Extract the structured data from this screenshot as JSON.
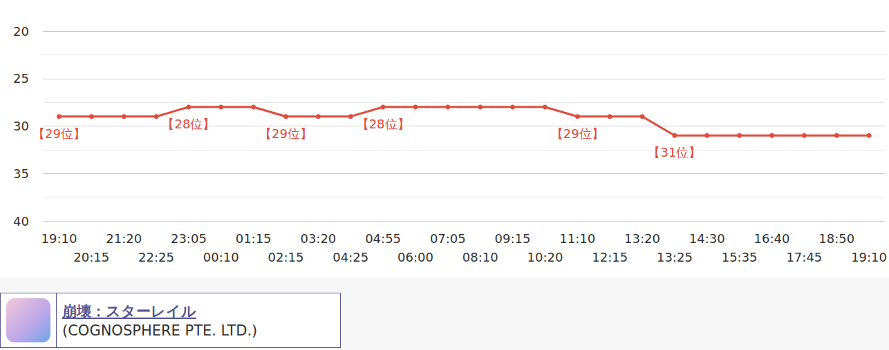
{
  "chart_data": {
    "type": "line",
    "subtitle": "(COGNOSPHERE PTE. LTD.)",
    "categories": [
      "19:10",
      "20:15",
      "21:20",
      "22:25",
      "23:05",
      "00:10",
      "01:15",
      "02:15",
      "03:20",
      "04:25",
      "04:55",
      "06:00",
      "07:05",
      "08:10",
      "09:15",
      "10:20",
      "11:10",
      "12:15",
      "13:20",
      "13:25",
      "14:30",
      "15:35",
      "16:40",
      "17:45",
      "18:50",
      "19:10"
    ],
    "series": [
      {
        "name": "崩壊：スターレイル",
        "color": "#e04b3b",
        "values": [
          29,
          29,
          29,
          29,
          28,
          28,
          28,
          29,
          29,
          29,
          28,
          28,
          28,
          28,
          28,
          28,
          29,
          29,
          29,
          31,
          31,
          31,
          31,
          31,
          31,
          31
        ],
        "value_labels": [
          "【29位】",
          null,
          null,
          null,
          "【28位】",
          null,
          null,
          "【29位】",
          null,
          null,
          "【28位】",
          null,
          null,
          null,
          null,
          null,
          "【29位】",
          null,
          null,
          "【31位】",
          null,
          null,
          null,
          null,
          null,
          null
        ]
      }
    ],
    "ylim": [
      20,
      40
    ],
    "yticks": [
      20,
      25,
      30,
      35,
      40
    ],
    "grid": true,
    "legend": "bottom-left"
  }
}
